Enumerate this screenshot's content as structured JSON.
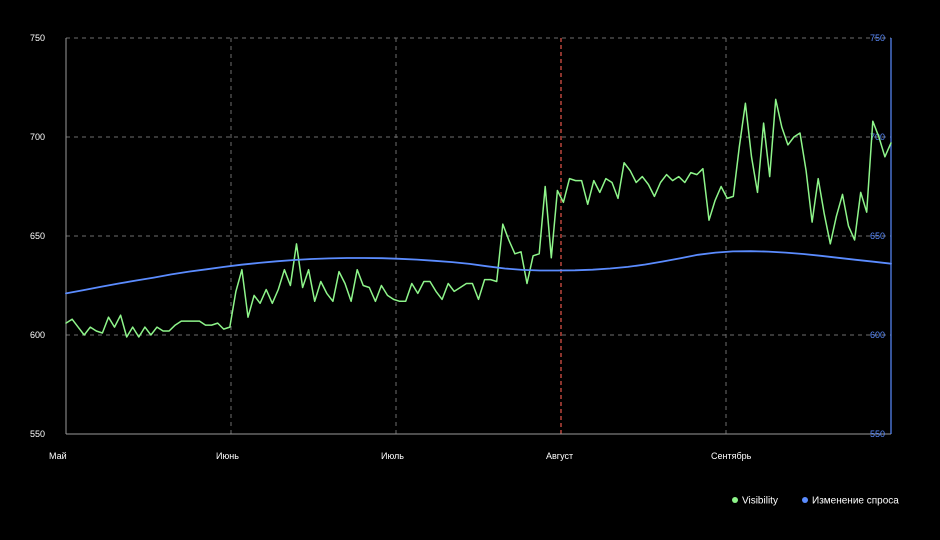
{
  "chart_data": {
    "type": "line",
    "title": "",
    "xlabel": "",
    "ylabel": "",
    "ylim": [
      550,
      750
    ],
    "y2lim": [
      550,
      750
    ],
    "y_ticks": [
      550,
      600,
      650,
      700,
      750
    ],
    "y_tick_labels": [
      "550",
      "600",
      "650",
      "700",
      "750"
    ],
    "y2_ticks": [
      550,
      600,
      650,
      700,
      750
    ],
    "y2_tick_labels": [
      "550",
      "600",
      "650",
      "700",
      "750"
    ],
    "x_ticks": [
      "Май",
      "Июнь",
      "Июль",
      "Август",
      "Сентябрь"
    ],
    "grid": true,
    "legend_position": "bottom-right",
    "reference_line": {
      "x": "Август",
      "color": "#e8574b"
    },
    "series": [
      {
        "name": "Visibility",
        "color": "#8ef58a",
        "axis": "left",
        "values": [
          606,
          608,
          604,
          600,
          604,
          602,
          601,
          609,
          604,
          610,
          599,
          604,
          599,
          604,
          600,
          604,
          602,
          602,
          605,
          607,
          607,
          607,
          607,
          605,
          605,
          606,
          603,
          604,
          622,
          633,
          609,
          620,
          616,
          623,
          616,
          623,
          633,
          625,
          646,
          624,
          633,
          617,
          627,
          621,
          617,
          632,
          626,
          617,
          633,
          625,
          624,
          617,
          625,
          620,
          618,
          617,
          617,
          626,
          621,
          627,
          627,
          622,
          618,
          626,
          622,
          624,
          626,
          626,
          618,
          628,
          628,
          627,
          656,
          648,
          641,
          642,
          626,
          640,
          641,
          675,
          639,
          673,
          667,
          679,
          678,
          678,
          666,
          678,
          672,
          679,
          677,
          669,
          687,
          683,
          677,
          680,
          676,
          670,
          677,
          681,
          678,
          680,
          677,
          682,
          681,
          684,
          658,
          668,
          675,
          669,
          670,
          695,
          717,
          690,
          672,
          707,
          680,
          719,
          705,
          696,
          700,
          702,
          683,
          657,
          679,
          661,
          646,
          660,
          671,
          655,
          648,
          672,
          662,
          708,
          700,
          690,
          697
        ]
      },
      {
        "name": "Изменение спроса",
        "color": "#5b8cff",
        "axis": "right",
        "values": [
          621,
          622.7,
          624.4,
          626,
          627.5,
          629,
          630.6,
          632,
          633.2,
          634.4,
          635.5,
          636.4,
          637.2,
          637.9,
          638.4,
          638.7,
          638.9,
          638.9,
          638.8,
          638.5,
          638.1,
          637.5,
          636.8,
          635.9,
          634.7,
          633.6,
          632.9,
          632.6,
          632.6,
          632.7,
          633,
          633.6,
          634.4,
          635.6,
          637.1,
          638.8,
          640.5,
          641.6,
          642.2,
          642.3,
          642.1,
          641.6,
          640.9,
          640,
          639,
          638,
          637,
          636
        ]
      }
    ]
  }
}
